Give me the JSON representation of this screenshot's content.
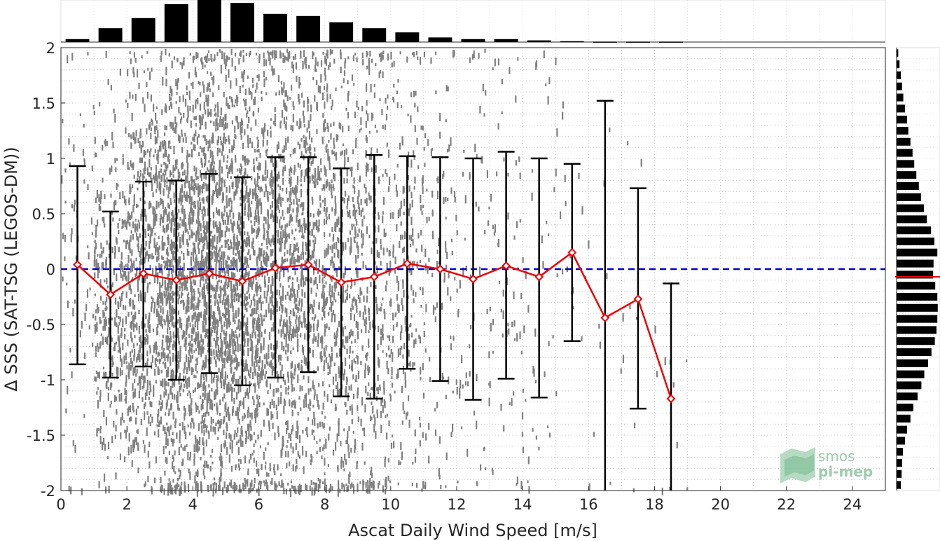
{
  "chart_data": {
    "type": "scatter",
    "xlabel": "Ascat Daily Wind Speed [m/s]",
    "ylabel": "Δ SSS (SAT-TSG (LEGOS-DM))",
    "xlim": [
      0,
      25
    ],
    "ylim": [
      -2,
      2
    ],
    "x_ticks": [
      "0",
      "2",
      "4",
      "6",
      "8",
      "10",
      "12",
      "14",
      "16",
      "18",
      "20",
      "22",
      "24"
    ],
    "y_ticks": [
      "2",
      "1.5",
      "1",
      "0.5",
      "0",
      "-0.5",
      "-1",
      "-1.5",
      "-2"
    ],
    "grid": "dotted",
    "scatter_color": "#808080",
    "zero_line": {
      "y": 0,
      "color": "#0000cc",
      "style": "dashed"
    },
    "binned_mean": {
      "color": "#ee0000",
      "x": [
        0.5,
        1.5,
        2.5,
        3.5,
        4.5,
        5.5,
        6.5,
        7.5,
        8.5,
        9.5,
        10.5,
        11.5,
        12.5,
        13.5,
        14.5,
        15.5,
        16.5,
        17.5,
        18.5
      ],
      "mean": [
        0.04,
        -0.23,
        -0.04,
        -0.1,
        -0.04,
        -0.11,
        0.01,
        0.04,
        -0.12,
        -0.07,
        0.05,
        0.0,
        -0.09,
        0.03,
        -0.07,
        0.15,
        -0.44,
        -0.27,
        -1.17
      ],
      "err_low": [
        -0.86,
        -0.98,
        -0.88,
        -1.0,
        -0.94,
        -1.05,
        -0.98,
        -0.93,
        -1.15,
        -1.17,
        -0.9,
        -1.01,
        -1.18,
        -0.99,
        -1.16,
        -0.65,
        -2.0,
        -1.26,
        -2.0
      ],
      "err_high": [
        0.93,
        0.52,
        0.79,
        0.8,
        0.86,
        0.83,
        1.01,
        1.01,
        0.91,
        1.03,
        1.02,
        1.01,
        1.0,
        1.06,
        1.0,
        0.95,
        1.52,
        0.73,
        -0.13
      ]
    },
    "top_histogram": {
      "bins_x": [
        0.5,
        1.5,
        2.5,
        3.5,
        4.5,
        5.5,
        6.5,
        7.5,
        8.5,
        9.5,
        10.5,
        11.5,
        12.5,
        13.5,
        14.5,
        15.5,
        16.5,
        17.5,
        18.5
      ],
      "counts": [
        0.07,
        0.33,
        0.57,
        0.9,
        1.0,
        0.93,
        0.67,
        0.62,
        0.47,
        0.33,
        0.23,
        0.11,
        0.07,
        0.07,
        0.04,
        0.02,
        0.01,
        0.01,
        0.01
      ]
    },
    "right_histogram": {
      "bins_y": [
        1.95,
        1.85,
        1.75,
        1.65,
        1.55,
        1.45,
        1.35,
        1.25,
        1.15,
        1.05,
        0.95,
        0.85,
        0.75,
        0.65,
        0.55,
        0.45,
        0.35,
        0.25,
        0.15,
        0.05,
        -0.05,
        -0.15,
        -0.25,
        -0.35,
        -0.45,
        -0.55,
        -0.65,
        -0.75,
        -0.85,
        -0.95,
        -1.05,
        -1.15,
        -1.25,
        -1.35,
        -1.45,
        -1.55,
        -1.65,
        -1.75,
        -1.85,
        -1.95
      ],
      "counts": [
        0.04,
        0.07,
        0.1,
        0.13,
        0.16,
        0.2,
        0.25,
        0.28,
        0.33,
        0.38,
        0.42,
        0.47,
        0.53,
        0.58,
        0.65,
        0.72,
        0.82,
        0.9,
        0.97,
        0.88,
        0.87,
        0.92,
        0.97,
        0.98,
        0.97,
        0.95,
        0.91,
        0.83,
        0.75,
        0.66,
        0.59,
        0.5,
        0.4,
        0.33,
        0.25,
        0.2,
        0.15,
        0.13,
        0.12,
        0.1
      ],
      "mean_line_y": -0.07,
      "mean_line_color": "#ee0000"
    }
  },
  "logo": {
    "line1": "smos",
    "line2": "pi-mep"
  }
}
